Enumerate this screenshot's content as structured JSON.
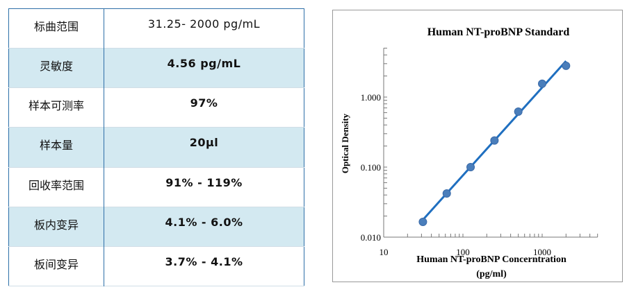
{
  "table": {
    "rows": [
      {
        "label": "标曲范围",
        "value": "31.25- 2000 pg/mL"
      },
      {
        "label": "灵敏度",
        "value": "4.56 pg/mL"
      },
      {
        "label": "样本可测率",
        "value": "97%"
      },
      {
        "label": "样本量",
        "value": "20μl"
      },
      {
        "label": "回收率范围",
        "value": "91% - 119%"
      },
      {
        "label": "板内变异",
        "value": "4.1% - 6.0%"
      },
      {
        "label": "板间变异",
        "value": "3.7% - 4.1%"
      }
    ]
  },
  "chart_data": {
    "type": "scatter",
    "title": "Human NT-proBNP Standard",
    "xlabel": "Human NT-proBNP Concerntration",
    "xlabel_unit": "(pg/ml)",
    "ylabel": "Optical Density",
    "x_scale": "log",
    "y_scale": "log",
    "xlim": [
      10,
      5000
    ],
    "ylim": [
      0.01,
      5
    ],
    "x_ticks": [
      "10",
      "100",
      "1000"
    ],
    "y_ticks": [
      "0.010",
      "0.100",
      "1.000"
    ],
    "series": [
      {
        "x": [
          31.25,
          62.5,
          125,
          250,
          500,
          1000,
          2000
        ],
        "y": [
          0.0165,
          0.042,
          0.1,
          0.24,
          0.62,
          1.55,
          2.8
        ]
      }
    ],
    "fit_line": {
      "x": [
        31.25,
        2000
      ],
      "y": [
        0.0177,
        3.27
      ]
    },
    "colors": {
      "point": "#4a7ebb",
      "line": "#1f6fc0"
    },
    "grid": false
  }
}
